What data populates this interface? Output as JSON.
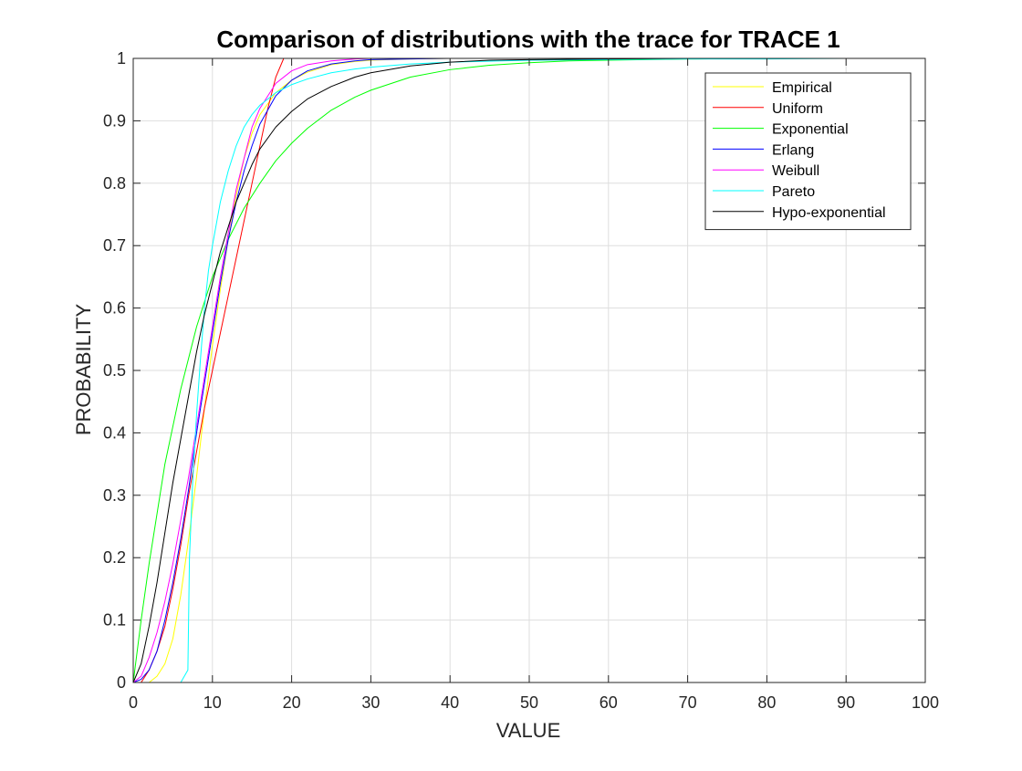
{
  "chart_data": {
    "type": "line",
    "title": "Comparison of distributions with the trace for TRACE 1",
    "xlabel": "VALUE",
    "ylabel": "PROBABILITY",
    "xlim": [
      0,
      100
    ],
    "ylim": [
      0,
      1
    ],
    "x_ticks": [
      0,
      10,
      20,
      30,
      40,
      50,
      60,
      70,
      80,
      90,
      100
    ],
    "y_ticks": [
      0,
      0.1,
      0.2,
      0.3,
      0.4,
      0.5,
      0.6,
      0.7,
      0.8,
      0.9,
      1
    ],
    "x_tick_labels": [
      "0",
      "10",
      "20",
      "30",
      "40",
      "50",
      "60",
      "70",
      "80",
      "90",
      "100"
    ],
    "y_tick_labels": [
      "0",
      "0.1",
      "0.2",
      "0.3",
      "0.4",
      "0.5",
      "0.6",
      "0.7",
      "0.8",
      "0.9",
      "1"
    ],
    "grid": true,
    "legend_position": "top-right",
    "series": [
      {
        "name": "Empirical",
        "color": "#ffff00",
        "x": [
          0,
          2,
          3,
          4,
          5,
          6,
          7,
          8,
          9,
          10,
          11,
          12,
          13,
          14,
          15,
          16,
          18,
          20,
          22,
          25,
          28,
          30,
          35,
          40,
          50,
          60,
          100
        ],
        "y": [
          0,
          0,
          0.01,
          0.03,
          0.07,
          0.14,
          0.23,
          0.33,
          0.44,
          0.54,
          0.63,
          0.71,
          0.78,
          0.84,
          0.88,
          0.91,
          0.945,
          0.965,
          0.978,
          0.99,
          0.995,
          0.997,
          0.999,
          1,
          1,
          1,
          1
        ]
      },
      {
        "name": "Uniform",
        "color": "#ff0000",
        "x": [
          0,
          1,
          2,
          3,
          4,
          5,
          6,
          7,
          8,
          9,
          10,
          11,
          12,
          13,
          14,
          15,
          16,
          17,
          18,
          19,
          19.5,
          20,
          100
        ],
        "y": [
          0,
          0,
          0.02,
          0.05,
          0.09,
          0.15,
          0.22,
          0.3,
          0.37,
          0.44,
          0.5,
          0.56,
          0.62,
          0.68,
          0.74,
          0.8,
          0.86,
          0.92,
          0.97,
          1,
          1,
          1,
          1
        ]
      },
      {
        "name": "Exponential",
        "color": "#00ff00",
        "x": [
          0,
          1,
          2,
          3,
          4,
          5,
          6,
          7,
          8,
          9,
          10,
          12,
          14,
          16,
          18,
          20,
          22,
          25,
          28,
          30,
          35,
          40,
          45,
          50,
          55,
          60,
          70,
          80,
          90,
          100
        ],
        "y": [
          0,
          0.1,
          0.19,
          0.27,
          0.35,
          0.41,
          0.47,
          0.52,
          0.57,
          0.61,
          0.65,
          0.71,
          0.76,
          0.8,
          0.836,
          0.864,
          0.888,
          0.917,
          0.938,
          0.949,
          0.97,
          0.982,
          0.989,
          0.993,
          0.996,
          0.997,
          0.999,
          1,
          1,
          1
        ]
      },
      {
        "name": "Erlang",
        "color": "#0000ff",
        "x": [
          0,
          1,
          2,
          3,
          4,
          5,
          6,
          7,
          8,
          9,
          10,
          11,
          12,
          13,
          14,
          15,
          16,
          18,
          20,
          22,
          25,
          28,
          30,
          35,
          40,
          50,
          60,
          100
        ],
        "y": [
          0,
          0.005,
          0.02,
          0.05,
          0.1,
          0.16,
          0.23,
          0.31,
          0.4,
          0.48,
          0.56,
          0.64,
          0.71,
          0.77,
          0.82,
          0.86,
          0.895,
          0.94,
          0.965,
          0.98,
          0.991,
          0.996,
          0.998,
          0.999,
          1,
          1,
          1,
          1
        ]
      },
      {
        "name": "Weibull",
        "color": "#ff00ff",
        "x": [
          0,
          1,
          2,
          3,
          4,
          5,
          6,
          7,
          8,
          9,
          10,
          11,
          12,
          13,
          14,
          15,
          16,
          18,
          20,
          22,
          25,
          28,
          30,
          35,
          40,
          50,
          100
        ],
        "y": [
          0,
          0.01,
          0.04,
          0.08,
          0.13,
          0.19,
          0.26,
          0.33,
          0.41,
          0.49,
          0.57,
          0.65,
          0.72,
          0.79,
          0.84,
          0.89,
          0.92,
          0.96,
          0.98,
          0.99,
          0.996,
          0.999,
          1,
          1,
          1,
          1,
          1
        ]
      },
      {
        "name": "Pareto",
        "color": "#00ffff",
        "x": [
          0,
          6,
          6.9,
          7.1,
          7.5,
          8,
          8.5,
          9,
          9.5,
          10,
          11,
          12,
          13,
          14,
          15,
          16,
          18,
          20,
          22,
          25,
          28,
          30,
          35,
          40,
          50,
          60,
          70,
          80,
          90,
          100
        ],
        "y": [
          0,
          0,
          0.02,
          0.2,
          0.32,
          0.43,
          0.52,
          0.6,
          0.66,
          0.7,
          0.77,
          0.82,
          0.86,
          0.89,
          0.91,
          0.925,
          0.945,
          0.958,
          0.967,
          0.977,
          0.983,
          0.986,
          0.991,
          0.994,
          0.997,
          0.998,
          0.999,
          0.999,
          1,
          1
        ]
      },
      {
        "name": "Hypo-exponential",
        "color": "#000000",
        "x": [
          0,
          1,
          2,
          3,
          4,
          5,
          6,
          7,
          8,
          9,
          10,
          11,
          12,
          13,
          14,
          15,
          16,
          18,
          20,
          22,
          25,
          28,
          30,
          35,
          40,
          45,
          50,
          60,
          70,
          100
        ],
        "y": [
          0,
          0.03,
          0.09,
          0.16,
          0.24,
          0.32,
          0.39,
          0.46,
          0.53,
          0.59,
          0.64,
          0.69,
          0.73,
          0.77,
          0.8,
          0.83,
          0.855,
          0.89,
          0.915,
          0.935,
          0.955,
          0.97,
          0.977,
          0.988,
          0.994,
          0.997,
          0.998,
          0.999,
          1,
          1
        ]
      }
    ]
  }
}
